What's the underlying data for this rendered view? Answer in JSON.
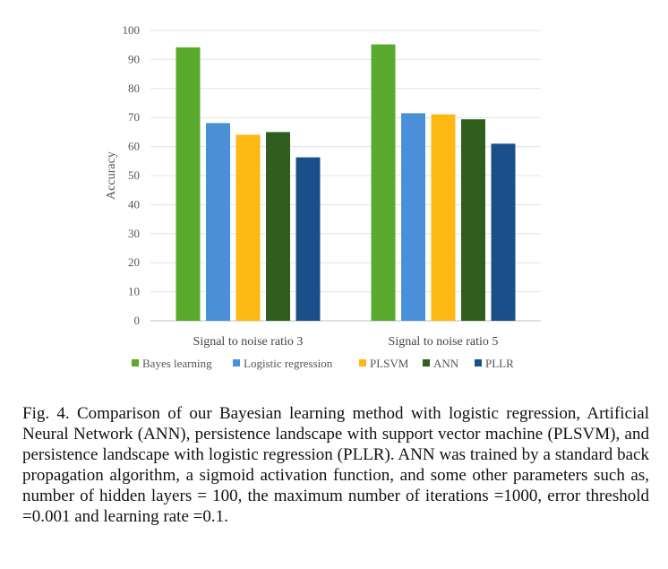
{
  "chart_data": {
    "type": "bar",
    "categories": [
      "Signal to noise ratio 3",
      "Signal to noise ratio 5"
    ],
    "series": [
      {
        "name": "Bayes learning",
        "values": [
          94.2,
          95.2
        ],
        "color": "#5aaa2e"
      },
      {
        "name": "Logistic regression",
        "values": [
          68.1,
          71.5
        ],
        "color": "#4a90d9"
      },
      {
        "name": "PLSVM",
        "values": [
          64.1,
          71.1
        ],
        "color": "#fdb813"
      },
      {
        "name": "ANN",
        "values": [
          65.0,
          69.4
        ],
        "color": "#2f5e1e"
      },
      {
        "name": "PLLR",
        "values": [
          56.3,
          61.0
        ],
        "color": "#1a4f8a"
      }
    ],
    "ylabel": "Accuracy",
    "ylim": [
      0,
      100
    ],
    "yticks": [
      0,
      10,
      20,
      30,
      40,
      50,
      60,
      70,
      80,
      90,
      100
    ],
    "grid": true,
    "legend": "bottom"
  },
  "caption": "Fig. 4.  Comparison of our Bayesian learning method with logistic regression, Artificial Neural Network (ANN), persistence landscape with support vector machine (PLSVM), and persistence landscape with logistic regression (PLLR). ANN was trained by a standard back propagation algorithm, a sigmoid activation function, and some other parameters such as, number of hidden layers = 100, the maximum number of iterations =1000, error threshold =0.001 and learning rate =0.1."
}
